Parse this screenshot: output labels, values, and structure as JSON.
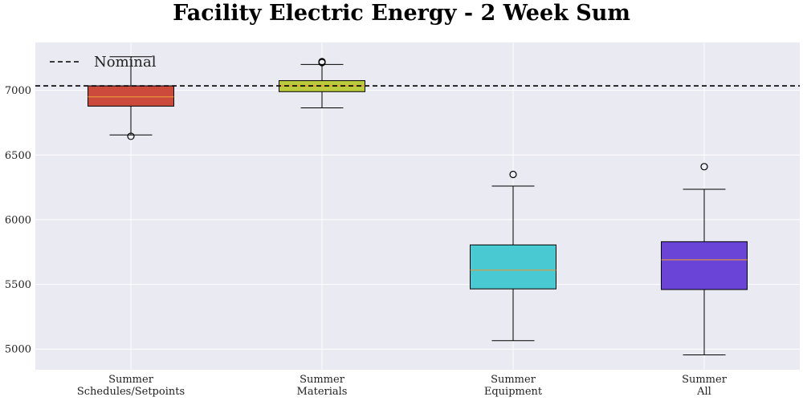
{
  "chart_data": {
    "type": "box",
    "title": "Facility Electric Energy - 2 Week Sum",
    "xlabel": "",
    "ylabel": "",
    "ylim": [
      4840,
      7370
    ],
    "yticks": [
      5000,
      5500,
      6000,
      6500,
      7000
    ],
    "grid": true,
    "legend": {
      "placement": "top-left",
      "entries": [
        "Nominal"
      ]
    },
    "reference_line": {
      "name": "Nominal",
      "value": 7035,
      "style": "dashed",
      "color": "#000000"
    },
    "categories": [
      "Summer\nSchedules/Setpoints",
      "Summer\nMaterials",
      "Summer\nEquipment",
      "Summer\nAll"
    ],
    "boxes": [
      {
        "category": "Summer\nSchedules/Setpoints",
        "whisker_low": 6655,
        "q1": 6878,
        "median": 6950,
        "q3": 7035,
        "whisker_high": 7260,
        "outliers": [
          6645
        ],
        "color": "#cc4a3c"
      },
      {
        "category": "Summer\nMaterials",
        "whisker_low": 6865,
        "q1": 6990,
        "median": 7035,
        "q3": 7075,
        "whisker_high": 7200,
        "outliers": [
          7215,
          7222
        ],
        "color": "#bccb3b"
      },
      {
        "category": "Summer\nEquipment",
        "whisker_low": 5065,
        "q1": 5465,
        "median": 5610,
        "q3": 5805,
        "whisker_high": 6260,
        "outliers": [
          6350
        ],
        "color": "#49c9d1"
      },
      {
        "category": "Summer\nAll",
        "whisker_low": 4955,
        "q1": 5460,
        "median": 5690,
        "q3": 5830,
        "whisker_high": 6235,
        "outliers": [
          6410
        ],
        "color": "#6a44d6"
      }
    ],
    "median_color": "#e8953a",
    "background": "#eaeaf2"
  }
}
